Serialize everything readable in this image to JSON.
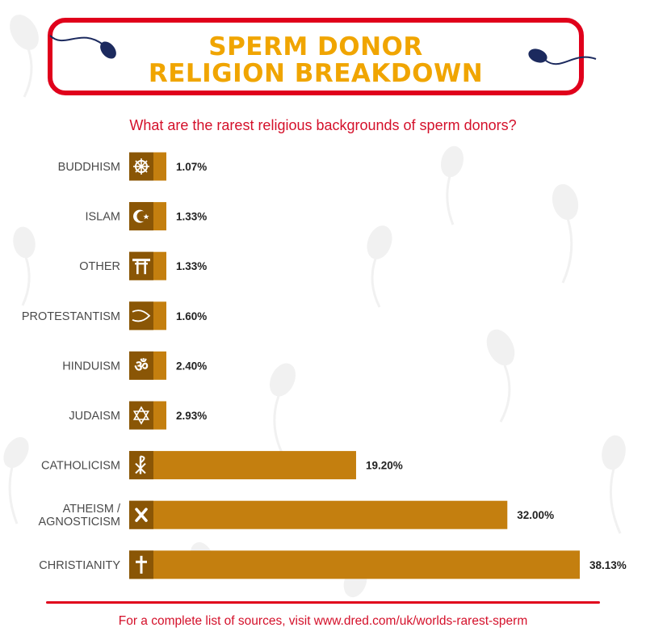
{
  "header": {
    "title_line1": "SPERM DONOR",
    "title_line2": "RELIGION BREAKDOWN",
    "subtitle": "What are the rarest religious backgrounds of sperm donors?"
  },
  "footer": {
    "text": "For a complete list of sources, visit www.dred.com/uk/worlds-rarest-sperm"
  },
  "colors": {
    "bar": "#c47f0f",
    "bar_icon_band": "#8a5606",
    "title_text": "#f0a500",
    "accent_red": "#e0001b",
    "label_text": "#4a4a4a",
    "value_text": "#222222"
  },
  "chart_data": {
    "type": "bar",
    "orientation": "horizontal",
    "categories": [
      "BUDDHISM",
      "ISLAM",
      "OTHER",
      "PROTESTANTISM",
      "HINDUISM",
      "JUDAISM",
      "CATHOLICISM",
      "ATHEISM / AGNOSTICISM",
      "CHRISTIANITY"
    ],
    "category_lines": [
      [
        "BUDDHISM"
      ],
      [
        "ISLAM"
      ],
      [
        "OTHER"
      ],
      [
        "PROTESTANTISM"
      ],
      [
        "HINDUISM"
      ],
      [
        "JUDAISM"
      ],
      [
        "CATHOLICISM"
      ],
      [
        "ATHEISM /",
        "AGNOSTICISM"
      ],
      [
        "CHRISTIANITY"
      ]
    ],
    "values": [
      1.07,
      1.33,
      1.33,
      1.6,
      2.4,
      2.93,
      19.2,
      32.0,
      38.13
    ],
    "value_labels": [
      "1.07%",
      "1.33%",
      "1.33%",
      "1.60%",
      "2.40%",
      "2.93%",
      "19.20%",
      "32.00%",
      "38.13%"
    ],
    "icons": [
      "dharma-wheel-icon",
      "crescent-star-icon",
      "torii-gate-icon",
      "ichthys-fish-icon",
      "om-icon",
      "star-of-david-icon",
      "chi-rho-icon",
      "x-icon",
      "latin-cross-icon"
    ],
    "unit": "%",
    "grid": false,
    "legend": "none"
  }
}
